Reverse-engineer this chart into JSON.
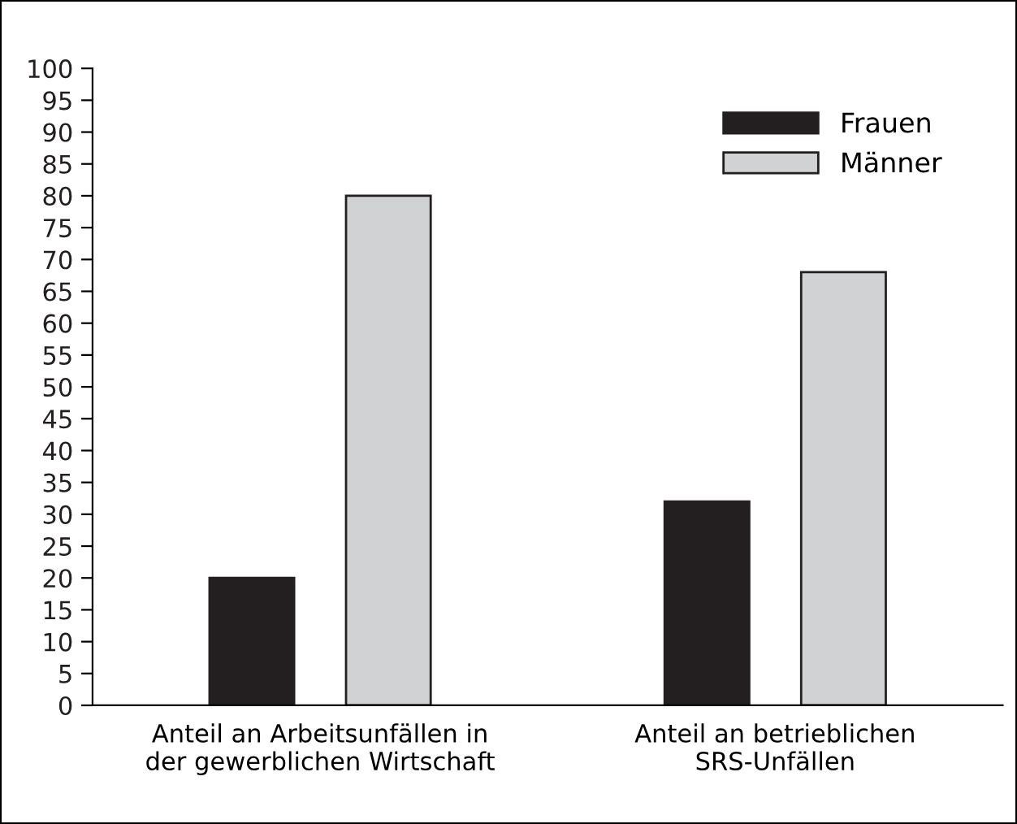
{
  "chart_data": {
    "type": "bar",
    "categories": [
      "Anteil an Arbeitsunfällen in\nder gewerblichen Wirtschaft",
      "Anteil an betrieblichen\nSRS-Unfällen"
    ],
    "series": [
      {
        "name": "Frauen",
        "color": "#231f20",
        "values": [
          20,
          32
        ]
      },
      {
        "name": "Männer",
        "color": "#d1d2d4",
        "values": [
          80,
          68
        ]
      }
    ],
    "ylim": [
      0,
      100
    ],
    "yticks": [
      0,
      5,
      10,
      15,
      20,
      25,
      30,
      35,
      40,
      45,
      50,
      55,
      60,
      65,
      70,
      75,
      80,
      85,
      90,
      95,
      100
    ],
    "grid": false,
    "legend": "top right"
  }
}
